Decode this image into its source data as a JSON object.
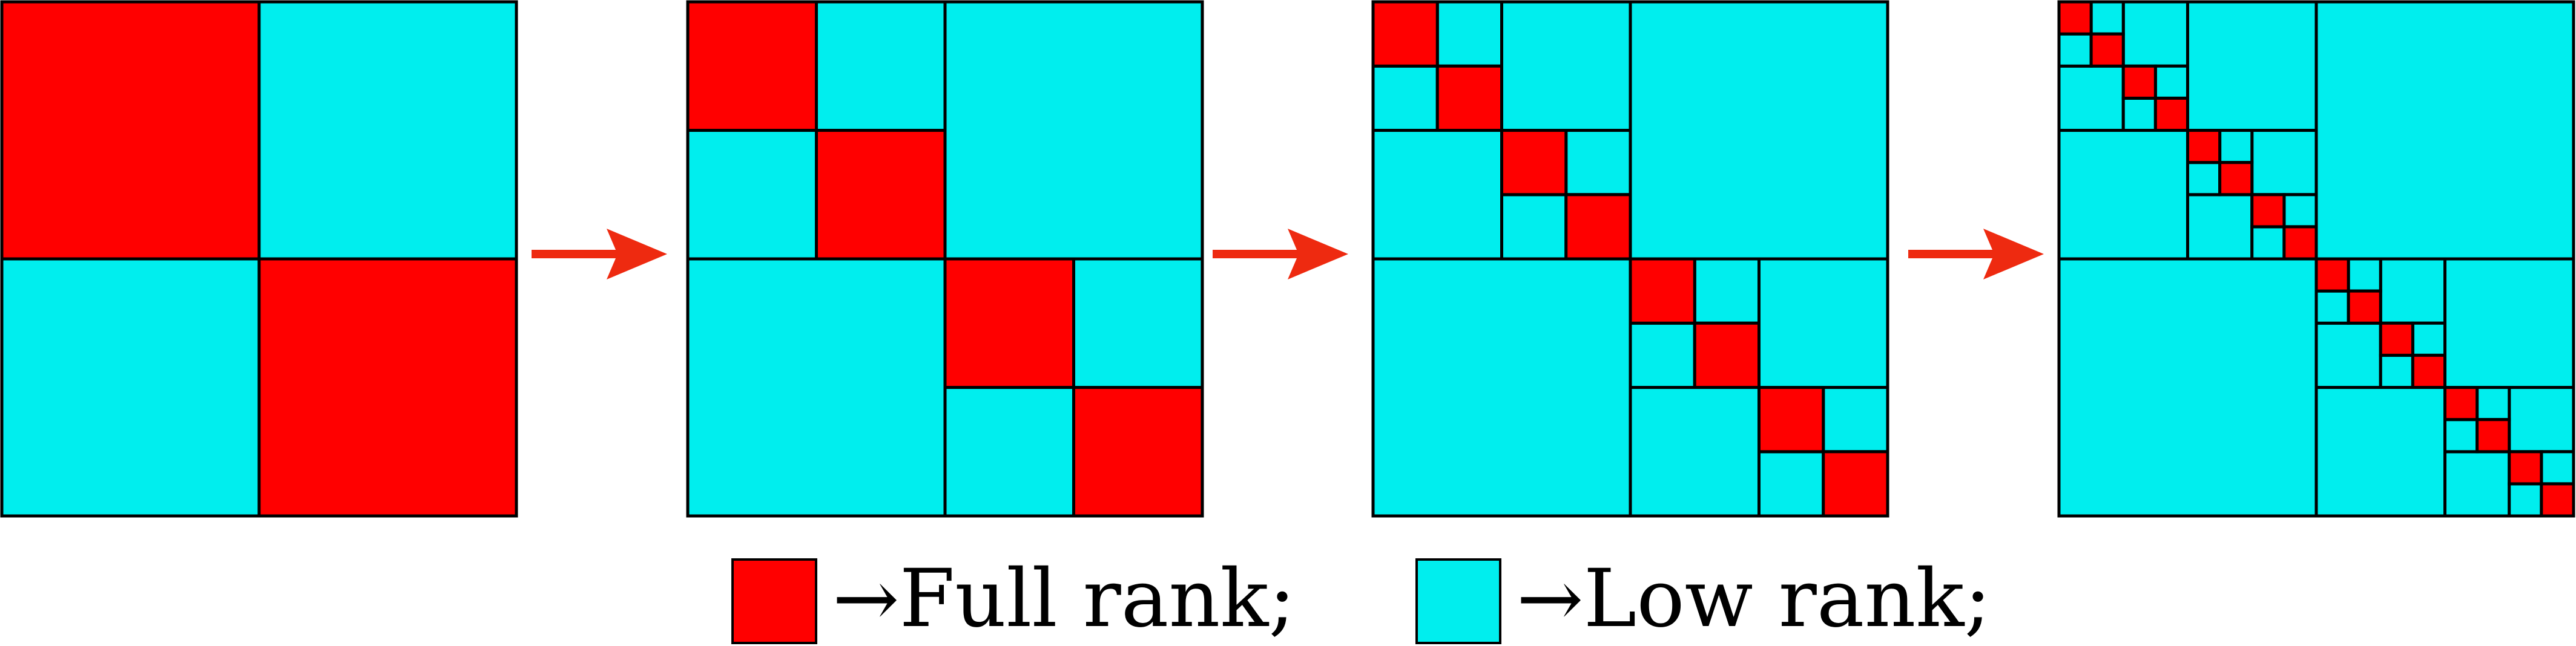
{
  "colors": {
    "full_rank": "#ff0000",
    "low_rank": "#00eeee",
    "border": "#000000",
    "arrow": "#ee2a10",
    "background": "#ffffff"
  },
  "diagram": {
    "panels": [
      {
        "level": 1
      },
      {
        "level": 2
      },
      {
        "level": 3
      },
      {
        "level": 4
      }
    ],
    "arrow_count": 3
  },
  "legend": {
    "full_rank_label": "→Full rank;",
    "low_rank_label": "→Low rank;"
  }
}
